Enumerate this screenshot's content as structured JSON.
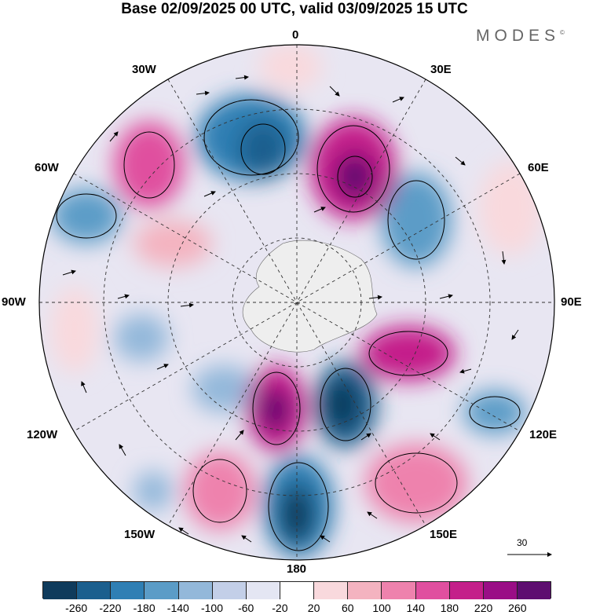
{
  "title": "Base 02/09/2025 00 UTC, valid 03/09/2025 15 UTC",
  "brand": "MODES",
  "brand_mark": "©",
  "longitude_labels": {
    "n0": "0",
    "e30": "30E",
    "e60": "60E",
    "e90": "90E",
    "e120": "120E",
    "e150": "150E",
    "s180": "180",
    "w150": "150W",
    "w120": "120W",
    "w90": "90W",
    "w60": "60W",
    "w30": "30W"
  },
  "vector_reference": "30",
  "colorbar": {
    "colors": [
      "#0f3b5c",
      "#1b5f8e",
      "#2f7fb4",
      "#5b9cc7",
      "#93b8da",
      "#c3cfe8",
      "#e4e6f3",
      "#ffffff",
      "#f9d9dd",
      "#f4b3c0",
      "#ee82ad",
      "#e04f9f",
      "#c41f8a",
      "#9a0e86",
      "#5e0e70"
    ],
    "tick_labels": [
      "-260",
      "-220",
      "-180",
      "-140",
      "-100",
      "-60",
      "-20",
      "20",
      "60",
      "100",
      "140",
      "180",
      "220",
      "260"
    ]
  },
  "map_colors": {
    "ocean_bg": "#e8e6f2",
    "land": "#f0f0f0",
    "grid": "#333333"
  }
}
